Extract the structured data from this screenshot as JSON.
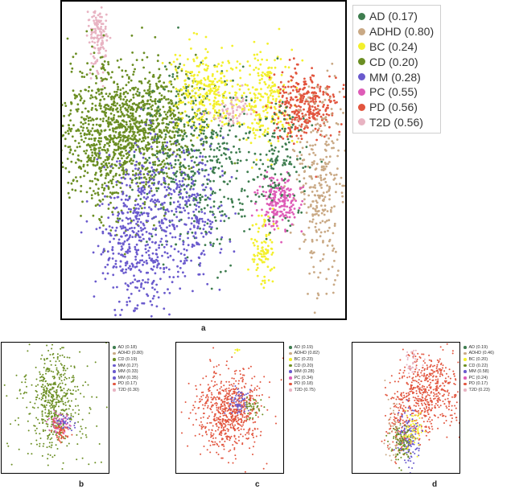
{
  "figure": {
    "panel_labels": {
      "a": "a",
      "b": "b",
      "c": "c",
      "d": "d"
    }
  },
  "colors": {
    "AD": "#3e7d4f",
    "ADHD": "#c9a985",
    "BC": "#f3f02c",
    "CD": "#6b8e23",
    "MM": "#6a5acd",
    "PC": "#de5cb7",
    "PD": "#e2553e",
    "T2D": "#e8b3c2"
  },
  "chart_data": [
    {
      "panel": "a",
      "type": "scatter",
      "legend_position": "right",
      "legend": [
        {
          "key": "AD",
          "label": "AD (0.17)"
        },
        {
          "key": "ADHD",
          "label": "ADHD (0.80)"
        },
        {
          "key": "BC",
          "label": "BC (0.24)"
        },
        {
          "key": "CD",
          "label": "CD (0.20)"
        },
        {
          "key": "MM",
          "label": "MM (0.28)"
        },
        {
          "key": "PC",
          "label": "PC (0.55)"
        },
        {
          "key": "PD",
          "label": "PD (0.56)"
        },
        {
          "key": "T2D",
          "label": "T2D (0.56)"
        }
      ]
    },
    {
      "panel": "b",
      "type": "scatter",
      "legend_position": "right",
      "legend": [
        {
          "key": "AD",
          "label": "AD (0.18)"
        },
        {
          "key": "ADHD",
          "label": "ADHD (0.80)"
        },
        {
          "key": "CD",
          "label": "CD (0.19)"
        },
        {
          "key": "MM",
          "label": "MM (0.27)"
        },
        {
          "key": "MM",
          "label": "MM (0.33)"
        },
        {
          "key": "MM",
          "label": "MM (0.35)"
        },
        {
          "key": "PD",
          "label": "PD (0.17)"
        },
        {
          "key": "T2D",
          "label": "T2D (0.30)"
        }
      ]
    },
    {
      "panel": "c",
      "type": "scatter",
      "legend_position": "right",
      "legend": [
        {
          "key": "AD",
          "label": "AD (0.19)"
        },
        {
          "key": "ADHD",
          "label": "ADHD (0.82)"
        },
        {
          "key": "BC",
          "label": "BC (0.23)"
        },
        {
          "key": "CD",
          "label": "CD (0.20)"
        },
        {
          "key": "MM",
          "label": "MM (0.28)"
        },
        {
          "key": "PC",
          "label": "PC (0.34)"
        },
        {
          "key": "PD",
          "label": "PD (0.18)"
        },
        {
          "key": "T2D",
          "label": "T2D (0.75)"
        }
      ]
    },
    {
      "panel": "d",
      "type": "scatter",
      "legend_position": "right",
      "legend": [
        {
          "key": "AD",
          "label": "AD (0.19)"
        },
        {
          "key": "ADHD",
          "label": "ADHD (0.46)"
        },
        {
          "key": "BC",
          "label": "BC (0.20)"
        },
        {
          "key": "CD",
          "label": "CD (0.22)"
        },
        {
          "key": "MM",
          "label": "MM (0.58)"
        },
        {
          "key": "PC",
          "label": "PC (0.24)"
        },
        {
          "key": "PD",
          "label": "PD (0.17)"
        },
        {
          "key": "T2D",
          "label": "T2D (0.23)"
        }
      ]
    }
  ]
}
